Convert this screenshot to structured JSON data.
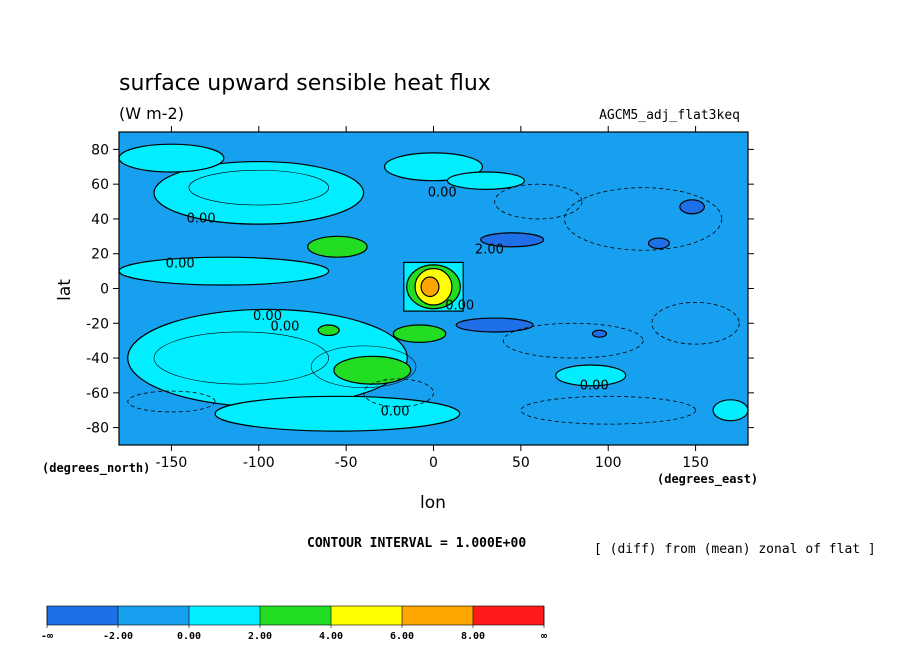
{
  "chart_data": {
    "type": "heatmap",
    "title": "surface upward sensible heat flux",
    "units": "(W m-2)",
    "dataset": "AGCM5_adj_flat3keq",
    "xlabel": "lon",
    "ylabel": "lat",
    "x_unit_label": "(degrees_east)",
    "y_unit_label": "(degrees_north)",
    "xlim": [
      -180,
      180
    ],
    "ylim": [
      -90,
      90
    ],
    "x_ticks": [
      -150,
      -100,
      -50,
      0,
      50,
      100,
      150
    ],
    "y_ticks": [
      80,
      60,
      40,
      20,
      0,
      -20,
      -40,
      -60,
      -80
    ],
    "x_tick_labels": [
      "-150",
      "-100",
      "-50",
      "0",
      "50",
      "100",
      "150"
    ],
    "y_tick_labels": [
      "80",
      "60",
      "40",
      "20",
      "0",
      "-20",
      "-40",
      "-60",
      "-80"
    ],
    "contour_interval_text": "CONTOUR INTERVAL = 1.000E+00",
    "contour_interval": 1.0,
    "field_description": "[ (diff) from (mean) zonal of flat ]",
    "contour_labels": [
      {
        "text": "0.00",
        "lon": 5,
        "lat": 55
      },
      {
        "text": "0.00",
        "lon": -133,
        "lat": 40
      },
      {
        "text": "0.00",
        "lon": -145,
        "lat": 14
      },
      {
        "text": "2.00",
        "lon": 32,
        "lat": 22
      },
      {
        "text": "0.00",
        "lon": -95,
        "lat": -16
      },
      {
        "text": "0.00",
        "lon": -85,
        "lat": -22
      },
      {
        "text": "0.00",
        "lon": 15,
        "lat": -10
      },
      {
        "text": "0.00",
        "lon": 92,
        "lat": -56
      },
      {
        "text": "0.00",
        "lon": -22,
        "lat": -71
      }
    ],
    "regions": [
      {
        "level": "2.00 to 4.00",
        "center": [
          -55,
          24
        ],
        "radius": [
          17,
          6
        ]
      },
      {
        "level": "2.00 to 4.00",
        "center": [
          -35,
          -47
        ],
        "radius": [
          22,
          8
        ]
      },
      {
        "level": "2.00 to 4.00",
        "center": [
          -8,
          -26
        ],
        "radius": [
          15,
          5
        ]
      },
      {
        "level": "2.00 to 4.00",
        "center": [
          -60,
          -24
        ],
        "radius": [
          6,
          3
        ]
      },
      {
        "level": "2.00 to 8.00",
        "center": [
          0,
          1
        ],
        "radius": [
          17,
          14
        ],
        "peak": 8
      },
      {
        "level": "-4.00 to -2.00",
        "center": [
          45,
          28
        ],
        "radius": [
          18,
          4
        ]
      },
      {
        "level": "-4.00 to -2.00",
        "center": [
          35,
          -21
        ],
        "radius": [
          22,
          4
        ]
      },
      {
        "level": "-4.00 to -2.00",
        "center": [
          148,
          47
        ],
        "radius": [
          7,
          4
        ]
      },
      {
        "level": "-4.00 to -2.00",
        "center": [
          129,
          26
        ],
        "radius": [
          6,
          3
        ]
      },
      {
        "level": "-4.00 to -2.00",
        "center": [
          95,
          -26
        ],
        "radius": [
          4,
          2
        ]
      },
      {
        "level": "0.00 to 2.00",
        "center": [
          -100,
          55
        ],
        "radius": [
          60,
          18
        ]
      },
      {
        "level": "0.00 to 2.00",
        "center": [
          -95,
          -40
        ],
        "radius": [
          80,
          28
        ]
      },
      {
        "level": "0.00 to 2.00",
        "center": [
          -120,
          10
        ],
        "radius": [
          60,
          8
        ]
      }
    ],
    "colorbar": {
      "labels": [
        "-∞",
        "-2.00",
        "0.00",
        "2.00",
        "4.00",
        "6.00",
        "8.00",
        "∞"
      ],
      "colors": [
        "#1f6fe8",
        "#18a0f0",
        "#00eeff",
        "#22dd22",
        "#ffff00",
        "#ffa500",
        "#ff1a1a"
      ]
    }
  },
  "colors": {
    "background_field": "#18a0f0",
    "light_positive": "#00eeff",
    "moderate_positive": "#22dd22",
    "high_positive": "#ffff00",
    "very_high_positive": "#ffa500",
    "negative": "#1f6fe8"
  }
}
